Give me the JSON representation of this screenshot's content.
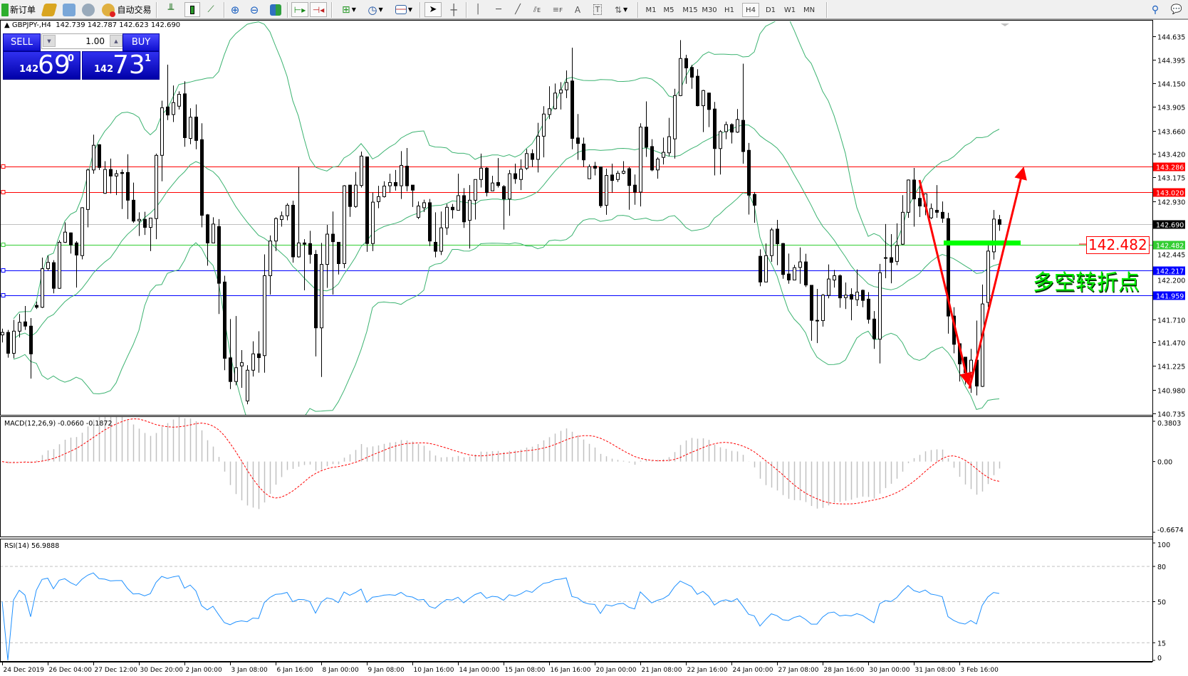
{
  "toolbar": {
    "new_order": "新订单",
    "auto_trading": "自动交易",
    "timeframes": [
      "M1",
      "M5",
      "M15",
      "M30",
      "H1",
      "H4",
      "D1",
      "W1",
      "MN"
    ],
    "active_timeframe": "H4",
    "icons": [
      "new-order-icon",
      "market-watch-icon",
      "terminal-icon",
      "signals-icon",
      "auto-trading-icon",
      "bar-chart-icon",
      "candlestick-icon",
      "line-chart-icon",
      "zoom-in-icon",
      "zoom-out-icon",
      "tile-windows-icon",
      "auto-scroll-icon",
      "chart-shift-icon",
      "indicators-icon",
      "periodicity-icon",
      "templates-icon",
      "cursor-icon",
      "crosshair-icon",
      "vertical-line-icon",
      "horizontal-line-icon",
      "trendline-icon",
      "equidistant-channel-icon",
      "fibonacci-icon",
      "text-icon",
      "text-label-icon",
      "arrows-icon",
      "search-icon",
      "chat-icon"
    ]
  },
  "chart": {
    "symbol_info": "GBPJPY-,H4  142.739 142.787 142.623 142.690",
    "trade_panel": {
      "sell_label": "SELL",
      "buy_label": "BUY",
      "lot": "1.00",
      "sell_prefix": "142",
      "sell_big": "69",
      "sell_sup": "0",
      "buy_prefix": "142",
      "buy_big": "73",
      "buy_sup": "1"
    },
    "price_axis": [
      "144.635",
      "144.395",
      "144.150",
      "143.905",
      "143.660",
      "143.420",
      "143.175",
      "142.930",
      "142.445",
      "142.200",
      "141.710",
      "141.470",
      "141.225",
      "140.980",
      "140.735"
    ],
    "levels": [
      {
        "price": 143.286,
        "color": "#ff0000",
        "label": "143.286"
      },
      {
        "price": 143.02,
        "color": "#ff0000",
        "label": "143.020"
      },
      {
        "price": 142.69,
        "color": "#000000",
        "line_color": "#c0c0c0",
        "label": "142.690"
      },
      {
        "price": 142.482,
        "color": "#32cd32",
        "label": "142.482"
      },
      {
        "price": 142.217,
        "color": "#0000ff",
        "label": "142.217"
      },
      {
        "price": 141.959,
        "color": "#0000ff",
        "label": "141.959"
      }
    ],
    "annotation_label": "142.482",
    "annotation_text": "多空转折点",
    "colors": {
      "bands": "#3cb371",
      "arrow": "#ff0000",
      "pivot_bar": "#00ff00"
    }
  },
  "macd": {
    "label": "MACD(12,26,9) -0.0660 -0.1872",
    "axis": [
      "0.3803",
      "0.00",
      "-0.6674"
    ],
    "hist_color": "#c0c0c0",
    "signal_color": "#ff0000"
  },
  "rsi": {
    "label": "RSI(14) 56.9888",
    "axis": [
      "100",
      "80",
      "50",
      "15",
      "0"
    ],
    "line_color": "#1e90ff"
  },
  "time_axis": [
    "24 Dec 2019",
    "26 Dec 04:00",
    "27 Dec 12:00",
    "30 Dec 20:00",
    "2 Jan 00:00",
    "3 Jan 08:00",
    "6 Jan 16:00",
    "8 Jan 00:00",
    "9 Jan 08:00",
    "10 Jan 16:00",
    "14 Jan 00:00",
    "15 Jan 08:00",
    "16 Jan 16:00",
    "20 Jan 00:00",
    "21 Jan 08:00",
    "22 Jan 16:00",
    "24 Jan 00:00",
    "27 Jan 08:00",
    "28 Jan 16:00",
    "30 Jan 00:00",
    "31 Jan 08:00",
    "3 Feb 16:00"
  ],
  "chart_data": {
    "type": "candlestick",
    "symbol": "GBPJPY-",
    "timeframe": "H4",
    "ylim": [
      140.735,
      144.635
    ],
    "indicators": [
      "Bollinger Bands",
      "MACD(12,26,9)",
      "RSI(14)"
    ],
    "candle_format": [
      "open",
      "high",
      "low",
      "close"
    ],
    "candles": [
      [
        141.547,
        141.612,
        141.469,
        141.573
      ],
      [
        141.573,
        141.599,
        141.312,
        141.357
      ],
      [
        141.357,
        141.703,
        141.305,
        141.586
      ],
      [
        141.586,
        141.763,
        141.521,
        141.677
      ],
      [
        141.682,
        141.846,
        141.599,
        141.638
      ],
      [
        141.638,
        141.721,
        141.096,
        141.351
      ],
      [
        141.852,
        141.891,
        141.815,
        141.833
      ],
      [
        141.833,
        142.347,
        141.825,
        142.232
      ],
      [
        142.232,
        142.367,
        142.211,
        142.297
      ],
      [
        142.294,
        142.32,
        141.977,
        142.029
      ],
      [
        142.029,
        142.526,
        142.023,
        142.505
      ],
      [
        142.505,
        142.711,
        142.498,
        142.61
      ],
      [
        142.602,
        142.607,
        142.388,
        142.477
      ],
      [
        142.498,
        142.516,
        142.037,
        142.373
      ],
      [
        142.367,
        142.868,
        142.328,
        142.862
      ],
      [
        142.844,
        143.266,
        142.659,
        143.253
      ],
      [
        143.253,
        143.618,
        143.214,
        143.508
      ],
      [
        143.514,
        143.519,
        143.253,
        143.279
      ],
      [
        143.013,
        143.344,
        143.006,
        143.258
      ],
      [
        143.258,
        143.37,
        143.011,
        143.19
      ],
      [
        143.19,
        143.253,
        142.993,
        143.214
      ],
      [
        143.227,
        143.258,
        142.849,
        143.216
      ],
      [
        143.227,
        143.415,
        142.745,
        142.94
      ],
      [
        142.94,
        143.122,
        142.706,
        142.724
      ],
      [
        142.727,
        142.815,
        142.57,
        142.742
      ],
      [
        142.742,
        142.82,
        142.581,
        142.659
      ],
      [
        142.659,
        142.755,
        142.414,
        142.755
      ],
      [
        142.75,
        143.422,
        142.537,
        143.404
      ],
      [
        143.404,
        143.969,
        143.136,
        143.896
      ],
      [
        143.904,
        144.342,
        143.769,
        143.821
      ],
      [
        143.826,
        144.126,
        143.748,
        143.949
      ],
      [
        143.912,
        144.066,
        143.878,
        144.035
      ],
      [
        144.04,
        144.17,
        143.493,
        143.587
      ],
      [
        143.579,
        143.891,
        143.519,
        143.798
      ],
      [
        143.8,
        143.93,
        143.467,
        143.558
      ],
      [
        143.566,
        143.735,
        142.659,
        142.784
      ],
      [
        142.789,
        142.797,
        142.263,
        142.498
      ],
      [
        142.498,
        142.763,
        142.498,
        142.693
      ],
      [
        142.667,
        142.745,
        141.763,
        142.081
      ],
      [
        142.094,
        142.159,
        141.182,
        141.305
      ],
      [
        141.31,
        141.711,
        140.987,
        141.065
      ],
      [
        141.065,
        141.742,
        141.026,
        141.208
      ],
      [
        141.226,
        141.39,
        141.0,
        141.26
      ],
      [
        140.864,
        141.234,
        140.83,
        141.182
      ],
      [
        141.182,
        141.481,
        141.117,
        141.351
      ],
      [
        141.351,
        141.585,
        141.156,
        141.312
      ],
      [
        141.333,
        142.38,
        141.156,
        142.159
      ],
      [
        142.159,
        142.576,
        141.964,
        142.518
      ],
      [
        142.518,
        142.763,
        142.414,
        142.75
      ],
      [
        142.74,
        142.823,
        142.667,
        142.779
      ],
      [
        142.779,
        142.909,
        142.732,
        142.888
      ],
      [
        142.888,
        142.935,
        142.294,
        142.354
      ],
      [
        142.354,
        143.284,
        142.347,
        142.498
      ],
      [
        142.498,
        142.537,
        142.008,
        142.485
      ],
      [
        142.492,
        142.623,
        142.284,
        142.38
      ],
      [
        142.38,
        142.425,
        141.325,
        141.62
      ],
      [
        141.62,
        142.498,
        141.112,
        142.276
      ],
      [
        142.276,
        142.685,
        142.034,
        142.589
      ],
      [
        142.589,
        142.823,
        141.964,
        142.511
      ],
      [
        142.505,
        142.505,
        142.172,
        142.284
      ],
      [
        142.284,
        143.096,
        142.237,
        143.089
      ],
      [
        143.096,
        143.096,
        142.768,
        142.875
      ],
      [
        142.875,
        143.232,
        142.862,
        143.096
      ],
      [
        143.092,
        143.443,
        143.071,
        143.396
      ],
      [
        143.388,
        143.388,
        142.406,
        142.492
      ],
      [
        142.492,
        143.019,
        142.414,
        142.92
      ],
      [
        142.925,
        143.089,
        142.857,
        142.977
      ],
      [
        142.977,
        143.136,
        142.967,
        143.086
      ],
      [
        143.089,
        143.214,
        143.019,
        143.123
      ],
      [
        143.123,
        143.253,
        143.039,
        143.089
      ],
      [
        143.089,
        143.448,
        142.953,
        143.3
      ],
      [
        143.292,
        143.48,
        143.032,
        143.089
      ],
      [
        143.096,
        143.096,
        142.87,
        143.044
      ],
      [
        142.763,
        142.927,
        142.745,
        142.88
      ],
      [
        142.862,
        142.945,
        142.818,
        142.914
      ],
      [
        142.914,
        142.953,
        142.466,
        142.518
      ],
      [
        142.505,
        142.815,
        142.349,
        142.412
      ],
      [
        142.412,
        142.823,
        142.373,
        142.654
      ],
      [
        142.654,
        142.901,
        142.581,
        142.867
      ],
      [
        142.867,
        142.901,
        142.75,
        142.841
      ],
      [
        142.836,
        143.214,
        142.836,
        142.987
      ],
      [
        142.987,
        143.065,
        142.654,
        142.716
      ],
      [
        142.732,
        143.096,
        142.44,
        142.94
      ],
      [
        142.94,
        143.154,
        142.74,
        143.154
      ],
      [
        143.154,
        143.422,
        143.071,
        143.271
      ],
      [
        143.271,
        143.284,
        142.979,
        143.019
      ],
      [
        143.037,
        143.193,
        143.037,
        143.118
      ],
      [
        143.123,
        143.376,
        143.071,
        143.092
      ],
      [
        143.081,
        143.096,
        142.636,
        142.953
      ],
      [
        142.953,
        143.253,
        142.779,
        143.214
      ],
      [
        143.214,
        143.318,
        143.11,
        143.162
      ],
      [
        143.154,
        143.362,
        143.045,
        143.261
      ],
      [
        143.271,
        143.469,
        143.253,
        143.422
      ],
      [
        143.422,
        143.466,
        143.284,
        143.362
      ],
      [
        143.362,
        143.74,
        143.227,
        143.602
      ],
      [
        143.602,
        143.912,
        143.383,
        143.831
      ],
      [
        143.826,
        144.118,
        143.779,
        143.886
      ],
      [
        143.886,
        144.147,
        143.878,
        144.048
      ],
      [
        144.048,
        144.16,
        143.878,
        144.081
      ],
      [
        144.081,
        144.282,
        143.996,
        144.157
      ],
      [
        144.173,
        144.517,
        143.467,
        143.579
      ],
      [
        143.584,
        143.831,
        143.357,
        143.527
      ],
      [
        143.521,
        143.587,
        143.284,
        143.357
      ],
      [
        143.162,
        143.31,
        143.162,
        143.287
      ],
      [
        143.292,
        143.336,
        143.196,
        143.271
      ],
      [
        143.284,
        143.284,
        142.862,
        142.883
      ],
      [
        142.888,
        143.266,
        142.789,
        143.196
      ],
      [
        143.201,
        143.318,
        143.019,
        143.144
      ],
      [
        143.154,
        143.245,
        143.128,
        143.219
      ],
      [
        143.219,
        143.344,
        143.209,
        143.24
      ],
      [
        143.266,
        143.284,
        142.841,
        143.092
      ],
      [
        143.096,
        143.206,
        142.893,
        143.024
      ],
      [
        143.024,
        143.735,
        142.875,
        143.696
      ],
      [
        143.696,
        143.962,
        143.388,
        143.488
      ],
      [
        143.495,
        143.571,
        143.24,
        143.253
      ],
      [
        143.253,
        143.383,
        143.162,
        143.365
      ],
      [
        143.383,
        143.587,
        143.31,
        143.435
      ],
      [
        143.43,
        143.792,
        143.396,
        143.597
      ],
      [
        143.574,
        144.092,
        143.37,
        144.022
      ],
      [
        144.022,
        144.595,
        144.016,
        144.405
      ],
      [
        144.405,
        144.444,
        144.144,
        144.308
      ],
      [
        144.313,
        144.339,
        144.092,
        144.212
      ],
      [
        144.222,
        144.295,
        143.91,
        143.917
      ],
      [
        143.917,
        144.081,
        143.644,
        144.074
      ],
      [
        144.048,
        144.053,
        143.696,
        143.878
      ],
      [
        143.883,
        143.956,
        143.196,
        143.474
      ],
      [
        143.474,
        143.665,
        143.206,
        143.649
      ],
      [
        143.649,
        143.753,
        143.571,
        143.722
      ],
      [
        143.722,
        143.735,
        143.527,
        143.644
      ],
      [
        143.644,
        143.883,
        143.636,
        143.774
      ],
      [
        143.766,
        144.352,
        143.318,
        143.443
      ],
      [
        143.456,
        143.532,
        142.792,
        142.992
      ],
      [
        143.0,
        143.024,
        142.706,
        142.888
      ],
      [
        142.36,
        142.432,
        142.05,
        142.094
      ],
      [
        142.094,
        142.492,
        142.094,
        142.367
      ],
      [
        142.367,
        142.654,
        142.302,
        142.633
      ],
      [
        142.641,
        142.737,
        142.268,
        142.49
      ],
      [
        142.492,
        142.498,
        142.128,
        142.172
      ],
      [
        142.177,
        142.388,
        142.076,
        142.115
      ],
      [
        142.115,
        142.271,
        142.115,
        142.242
      ],
      [
        142.245,
        142.451,
        142.076,
        142.302
      ],
      [
        142.302,
        142.386,
        142.042,
        142.063
      ],
      [
        142.06,
        142.06,
        141.487,
        141.698
      ],
      [
        141.698,
        142.023,
        141.463,
        141.695
      ],
      [
        141.695,
        141.971,
        141.633,
        141.958
      ],
      [
        141.956,
        142.276,
        141.925,
        142.125
      ],
      [
        142.115,
        142.219,
        142.037,
        142.159
      ],
      [
        142.159,
        142.172,
        141.828,
        141.93
      ],
      [
        141.932,
        142.089,
        141.815,
        141.958
      ],
      [
        141.964,
        142.029,
        141.698,
        141.917
      ],
      [
        141.911,
        142.224,
        141.846,
        141.99
      ],
      [
        142.008,
        142.016,
        141.833,
        141.904
      ],
      [
        141.917,
        141.99,
        141.664,
        141.708
      ],
      [
        141.711,
        141.794,
        141.403,
        141.508
      ],
      [
        141.503,
        142.281,
        141.252,
        142.19
      ],
      [
        142.346,
        142.693,
        142.133,
        142.339
      ],
      [
        142.346,
        142.589,
        142.081,
        142.297
      ],
      [
        142.307,
        142.701,
        142.268,
        142.472
      ],
      [
        142.485,
        142.992,
        142.477,
        142.815
      ],
      [
        142.815,
        143.154,
        142.758,
        143.149
      ],
      [
        143.149,
        143.274,
        142.667,
        142.953
      ],
      [
        142.959,
        143.123,
        142.766,
        142.88
      ],
      [
        142.875,
        143.011,
        142.784,
        143.006
      ],
      [
        142.758,
        142.906,
        142.745,
        142.854
      ],
      [
        142.836,
        143.096,
        142.758,
        142.815
      ],
      [
        142.815,
        142.927,
        142.706,
        142.753
      ],
      [
        142.75,
        142.81,
        141.56,
        141.742
      ],
      [
        141.742,
        141.833,
        141.357,
        141.45
      ],
      [
        141.456,
        141.456,
        141.065,
        141.247
      ],
      [
        141.317,
        141.317,
        141.034,
        141.156
      ],
      [
        141.161,
        141.403,
        140.948,
        141.286
      ],
      [
        141.286,
        141.695,
        140.922,
        141.018
      ],
      [
        141.015,
        142.068,
        141.008,
        141.867
      ],
      [
        141.883,
        142.472,
        141.833,
        142.414
      ],
      [
        142.406,
        142.839,
        142.326,
        142.745
      ],
      [
        142.739,
        142.787,
        142.623,
        142.69
      ]
    ]
  }
}
